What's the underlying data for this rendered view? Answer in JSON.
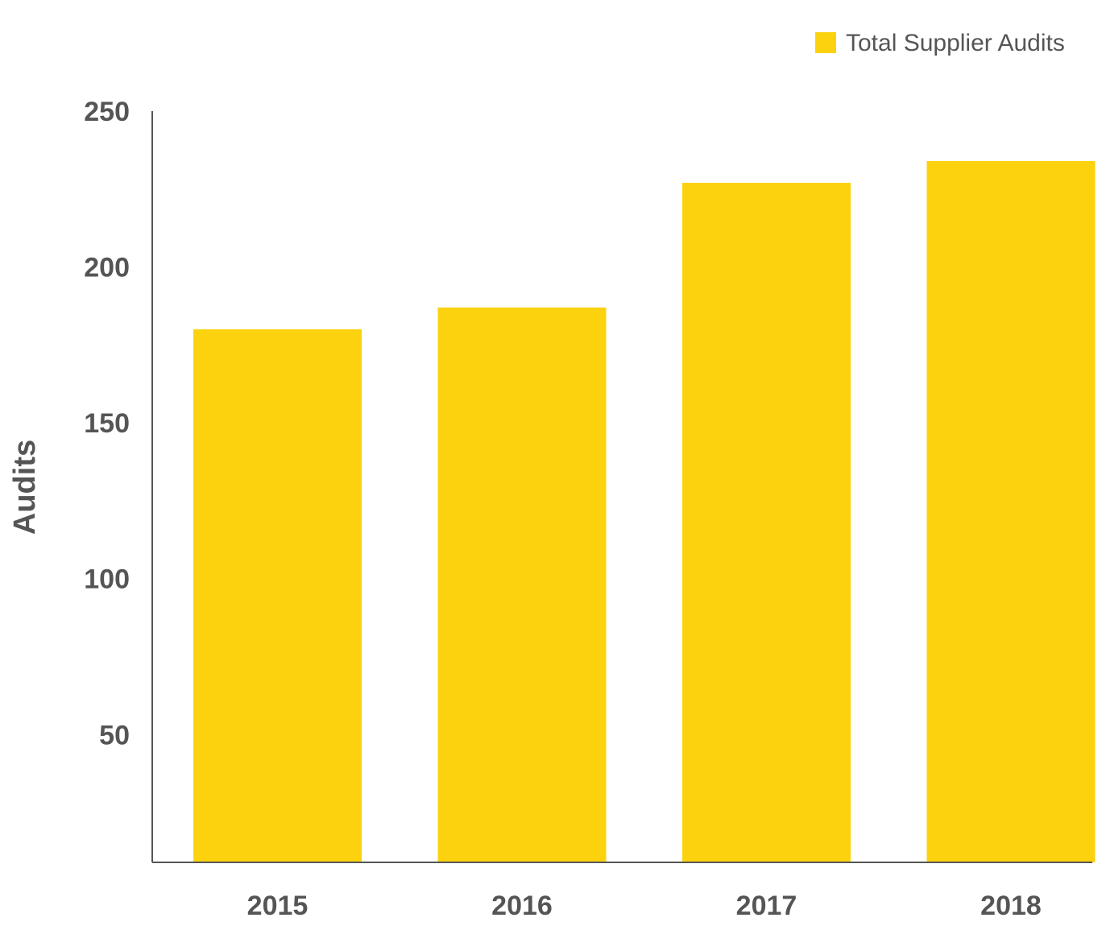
{
  "chart_data": {
    "type": "bar",
    "categories": [
      "2015",
      "2016",
      "2017",
      "2018"
    ],
    "series": [
      {
        "name": "Total Supplier Audits",
        "values": [
          180,
          187,
          227,
          234
        ]
      }
    ],
    "ylabel": "Audits",
    "xlabel": "",
    "ylim": [
      9,
      250
    ],
    "yticks": [
      50,
      100,
      150,
      200,
      250
    ],
    "legend_position": "top-right",
    "grid": false,
    "colors": {
      "bar": "#FCD20F",
      "axis": "#555555",
      "text": "#555555"
    }
  }
}
